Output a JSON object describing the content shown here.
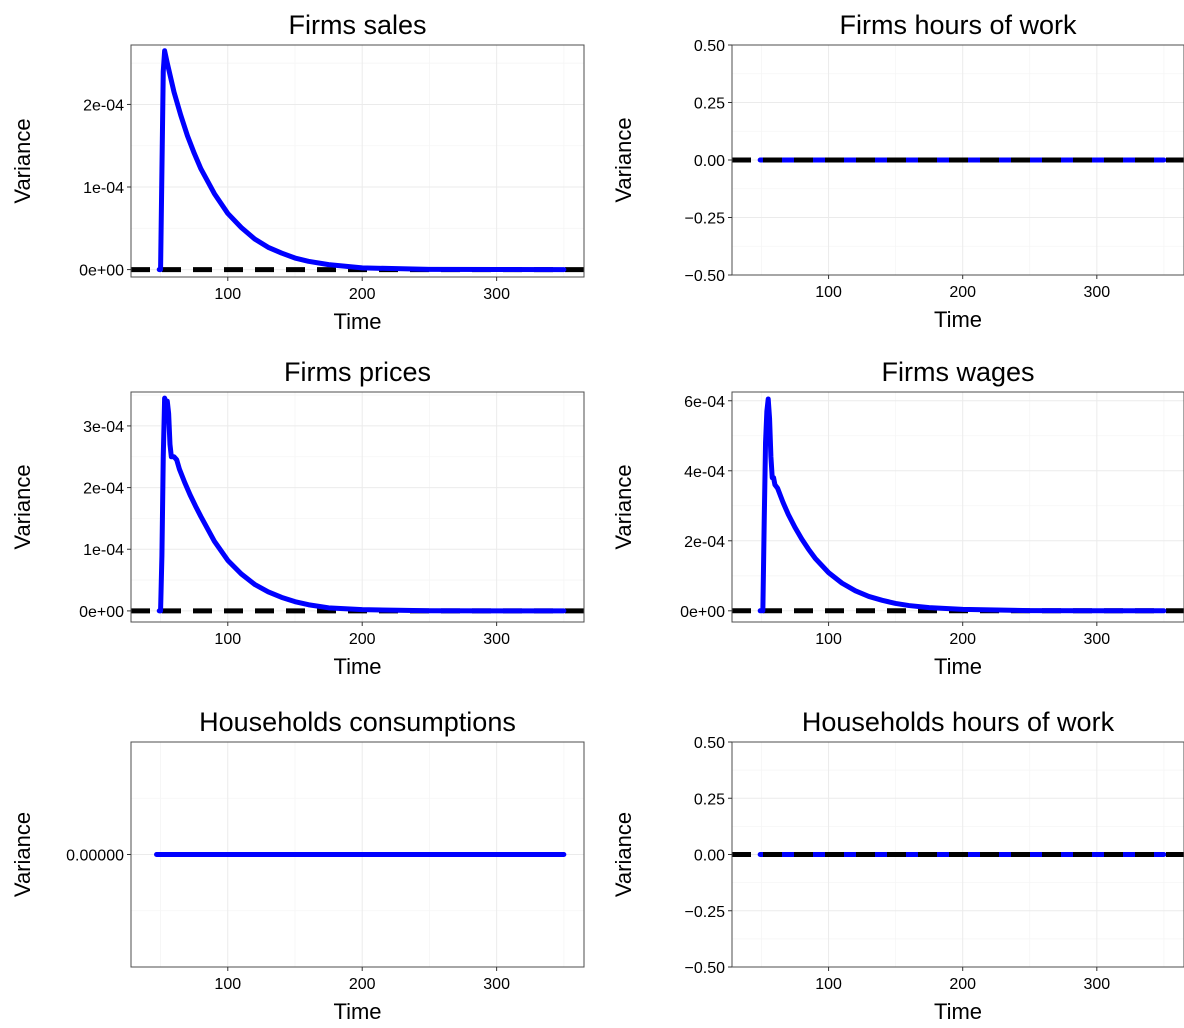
{
  "colors": {
    "series": "#0000ff",
    "reference": "#000000"
  },
  "chart_data": [
    {
      "type": "line",
      "title": "Firms sales",
      "xlabel": "Time",
      "ylabel": "Variance",
      "xlim": [
        28,
        365
      ],
      "ylim": [
        -9e-06,
        0.000272
      ],
      "x_ticks": [
        100,
        200,
        300
      ],
      "x_tick_labels": [
        "100",
        "200",
        "300"
      ],
      "y_ticks": [
        0,
        0.0001,
        0.0002
      ],
      "y_tick_labels": [
        "0e+00",
        "1e-04",
        "2e-04"
      ],
      "grid": true,
      "reference_line": 0,
      "series": [
        {
          "x": [
            49,
            50,
            51,
            52,
            53,
            55,
            60,
            65,
            70,
            75,
            80,
            90,
            100,
            110,
            120,
            130,
            140,
            150,
            160,
            175,
            200,
            250,
            300,
            350
          ],
          "y": [
            0,
            0,
            0.00012,
            0.00024,
            0.000265,
            0.00025,
            0.000215,
            0.000187,
            0.000162,
            0.000141,
            0.000122,
            9.2e-05,
            6.8e-05,
            5.1e-05,
            3.7e-05,
            2.7e-05,
            2e-05,
            1.4e-05,
            1e-05,
            6e-06,
            2e-06,
            3e-07,
            1e-07,
            0
          ]
        }
      ]
    },
    {
      "type": "line",
      "title": "Firms hours of work",
      "xlabel": "Time",
      "ylabel": "Variance",
      "xlim": [
        28,
        365
      ],
      "ylim": [
        -0.5,
        0.5
      ],
      "x_ticks": [
        100,
        200,
        300
      ],
      "x_tick_labels": [
        "100",
        "200",
        "300"
      ],
      "y_ticks": [
        -0.5,
        -0.25,
        0,
        0.25,
        0.5
      ],
      "y_tick_labels": [
        "−0.50",
        "−0.25",
        "0.00",
        "0.25",
        "0.50"
      ],
      "grid": true,
      "reference_line": 0,
      "series": [
        {
          "x": [
            49,
            350
          ],
          "y": [
            0,
            0
          ]
        }
      ]
    },
    {
      "type": "line",
      "title": "Firms prices",
      "xlabel": "Time",
      "ylabel": "Variance",
      "xlim": [
        28,
        365
      ],
      "ylim": [
        -1.8e-05,
        0.000355
      ],
      "x_ticks": [
        100,
        200,
        300
      ],
      "x_tick_labels": [
        "100",
        "200",
        "300"
      ],
      "y_ticks": [
        0,
        0.0001,
        0.0002,
        0.0003
      ],
      "y_tick_labels": [
        "0e+00",
        "1e-04",
        "2e-04",
        "3e-04"
      ],
      "grid": true,
      "reference_line": 0,
      "series": [
        {
          "x": [
            49,
            50,
            51,
            52,
            53,
            54,
            55,
            56,
            57,
            58,
            60,
            62,
            64,
            68,
            72,
            76,
            80,
            90,
            100,
            110,
            120,
            130,
            140,
            150,
            160,
            175,
            200,
            250,
            300,
            350
          ],
          "y": [
            0,
            0,
            9e-05,
            0.00025,
            0.000345,
            0.00034,
            0.00034,
            0.00032,
            0.00027,
            0.00025,
            0.00025,
            0.000245,
            0.00023,
            0.000208,
            0.000188,
            0.00017,
            0.000153,
            0.000113,
            8.2e-05,
            6e-05,
            4.3e-05,
            3.1e-05,
            2.2e-05,
            1.5e-05,
            1e-05,
            5e-06,
            2e-06,
            3e-07,
            1e-07,
            0
          ]
        }
      ]
    },
    {
      "type": "line",
      "title": "Firms wages",
      "xlabel": "Time",
      "ylabel": "Variance",
      "xlim": [
        28,
        365
      ],
      "ylim": [
        -3.2e-05,
        0.000625
      ],
      "x_ticks": [
        100,
        200,
        300
      ],
      "x_tick_labels": [
        "100",
        "200",
        "300"
      ],
      "y_ticks": [
        0,
        0.0002,
        0.0004,
        0.0006
      ],
      "y_tick_labels": [
        "0e+00",
        "2e-04",
        "4e-04",
        "6e-04"
      ],
      "grid": true,
      "reference_line": 0,
      "series": [
        {
          "x": [
            49,
            51,
            52,
            53,
            54,
            55,
            56,
            57,
            58,
            59,
            60,
            62,
            64,
            66,
            70,
            75,
            80,
            85,
            90,
            100,
            110,
            120,
            130,
            140,
            150,
            160,
            175,
            200,
            250,
            300,
            350
          ],
          "y": [
            0,
            0,
            0.00025,
            0.00048,
            0.00057,
            0.000605,
            0.00055,
            0.00044,
            0.00038,
            0.00038,
            0.00036,
            0.00035,
            0.00033,
            0.00031,
            0.000275,
            0.000238,
            0.000205,
            0.000176,
            0.00015,
            0.000109,
            7.9e-05,
            5.7e-05,
            4.1e-05,
            3e-05,
            2.1e-05,
            1.5e-05,
            9e-06,
            4e-06,
            5e-07,
            1e-07,
            0
          ]
        }
      ]
    },
    {
      "type": "line",
      "title": "Households consumptions",
      "xlabel": "Time",
      "ylabel": "Variance",
      "xlim": [
        28,
        365
      ],
      "ylim": [
        -1,
        1
      ],
      "x_ticks": [
        100,
        200,
        300
      ],
      "x_tick_labels": [
        "100",
        "200",
        "300"
      ],
      "y_ticks": [
        0
      ],
      "y_tick_labels": [
        "0.00000"
      ],
      "grid": true,
      "series": [
        {
          "x": [
            47,
            350
          ],
          "y": [
            0,
            0
          ]
        }
      ]
    },
    {
      "type": "line",
      "title": "Households hours of work",
      "xlabel": "Time",
      "ylabel": "Variance",
      "xlim": [
        28,
        365
      ],
      "ylim": [
        -0.5,
        0.5
      ],
      "x_ticks": [
        100,
        200,
        300
      ],
      "x_tick_labels": [
        "100",
        "200",
        "300"
      ],
      "y_ticks": [
        -0.5,
        -0.25,
        0,
        0.25,
        0.5
      ],
      "y_tick_labels": [
        "−0.50",
        "−0.25",
        "0.00",
        "0.25",
        "0.50"
      ],
      "grid": true,
      "reference_line": 0,
      "series": [
        {
          "x": [
            49,
            350
          ],
          "y": [
            0,
            0
          ]
        }
      ]
    }
  ]
}
